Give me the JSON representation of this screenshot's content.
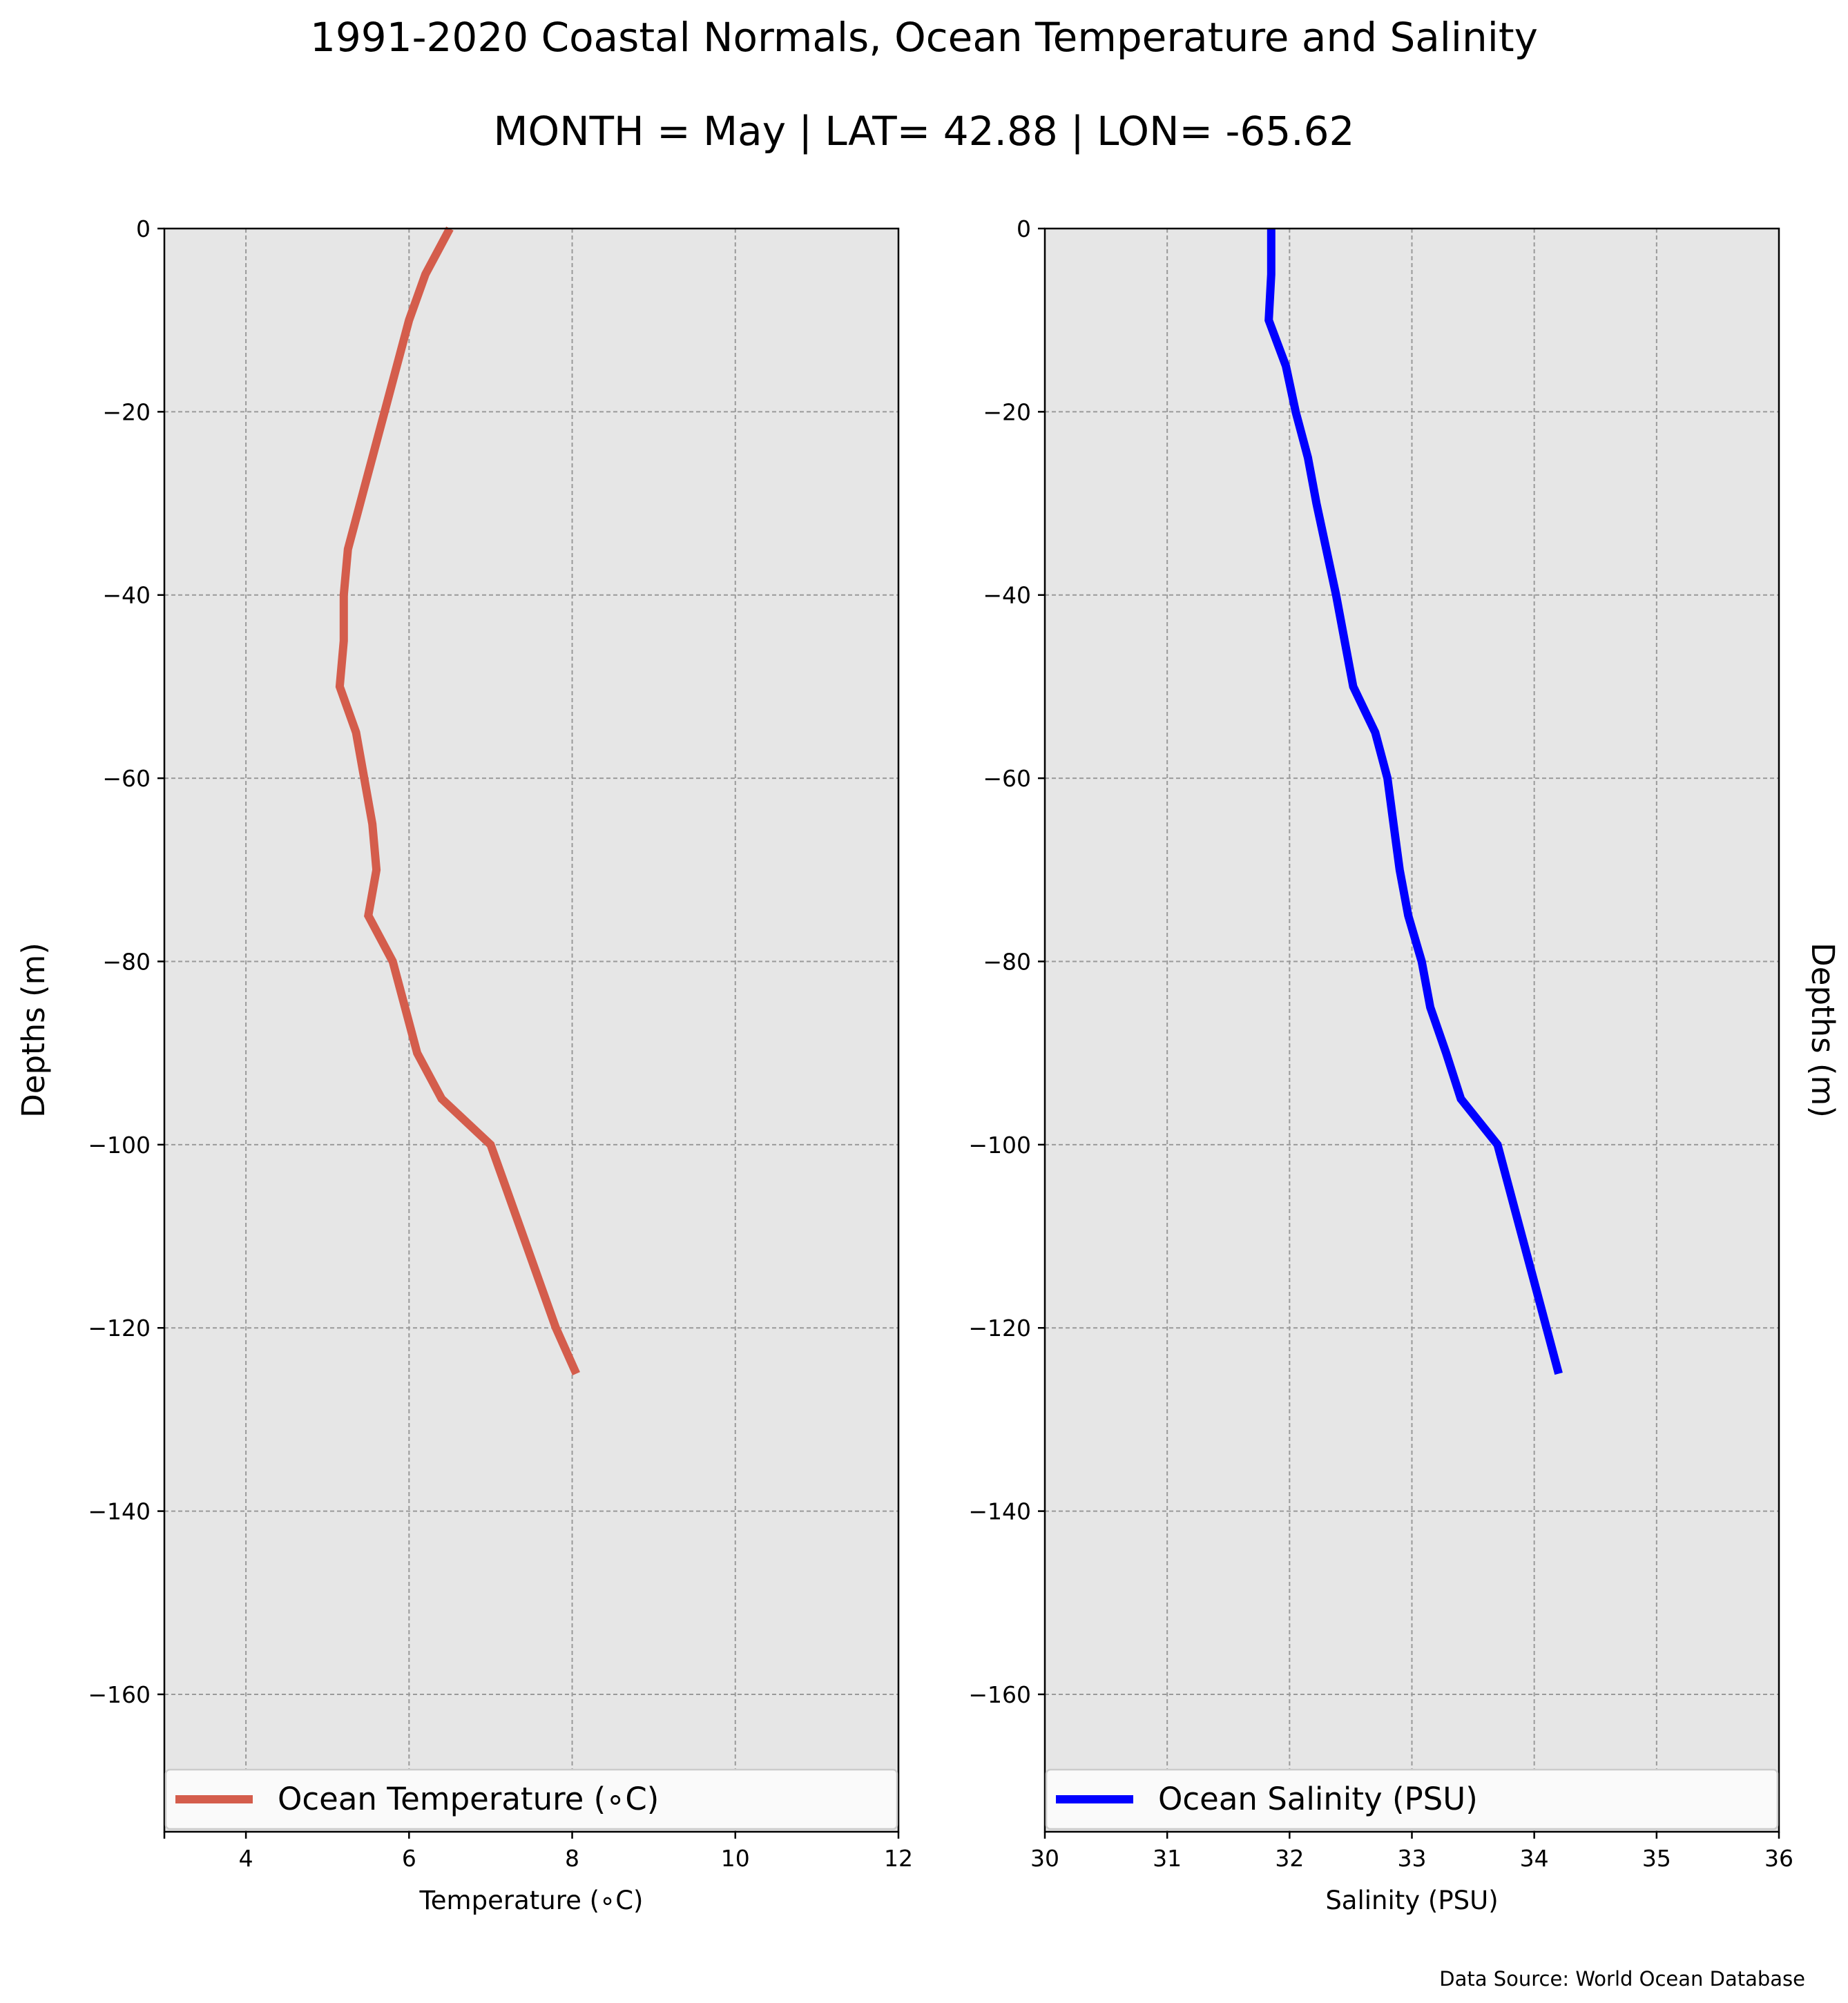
{
  "title": "1991-2020 Coastal Normals, Ocean Temperature and Salinity",
  "subtitle": "MONTH = May | LAT= 42.88 | LON= -65.62",
  "source": "Data Source: World Ocean Database",
  "chart_data": [
    {
      "type": "line",
      "xlabel": "Temperature (∘C)",
      "ylabel": "Depths (m)",
      "xlim": [
        3,
        12
      ],
      "ylim": [
        -175,
        0
      ],
      "xticks": [
        4,
        6,
        8,
        10,
        12
      ],
      "yticks": [
        0,
        -20,
        -40,
        -60,
        -80,
        -100,
        -120,
        -140,
        -160
      ],
      "grid": true,
      "legend_position": "bottom",
      "background": "#e6e6e6",
      "series": [
        {
          "name": "Ocean Temperature (∘C)",
          "color": "#d45d4c",
          "x": [
            6.5,
            6.2,
            6.0,
            5.85,
            5.7,
            5.55,
            5.4,
            5.25,
            5.2,
            5.2,
            5.15,
            5.35,
            5.45,
            5.55,
            5.6,
            5.5,
            5.8,
            5.95,
            6.1,
            6.4,
            7.0,
            7.2,
            7.4,
            7.6,
            7.8,
            8.05
          ],
          "y": [
            0,
            -5,
            -10,
            -15,
            -20,
            -25,
            -30,
            -35,
            -40,
            -45,
            -50,
            -55,
            -60,
            -65,
            -70,
            -75,
            -80,
            -85,
            -90,
            -95,
            -100,
            -105,
            -110,
            -115,
            -120,
            -125
          ]
        }
      ]
    },
    {
      "type": "line",
      "xlabel": "Salinity (PSU)",
      "ylabel": "Depths (m)",
      "xlim": [
        30,
        36
      ],
      "ylim": [
        -175,
        0
      ],
      "xticks": [
        30,
        31,
        32,
        33,
        34,
        35,
        36
      ],
      "yticks": [
        0,
        -20,
        -40,
        -60,
        -80,
        -100,
        -120,
        -140,
        -160
      ],
      "grid": true,
      "legend_position": "bottom",
      "background": "#e6e6e6",
      "series": [
        {
          "name": "Ocean Salinity (PSU)",
          "color": "#0000ff",
          "x": [
            31.85,
            31.85,
            31.83,
            31.97,
            32.05,
            32.15,
            32.22,
            32.3,
            32.38,
            32.45,
            32.52,
            32.7,
            32.8,
            32.85,
            32.9,
            32.97,
            33.08,
            33.15,
            33.28,
            33.4,
            33.7,
            33.8,
            33.9,
            34.0,
            34.1,
            34.2
          ],
          "y": [
            0,
            -5,
            -10,
            -15,
            -20,
            -25,
            -30,
            -35,
            -40,
            -45,
            -50,
            -55,
            -60,
            -65,
            -70,
            -75,
            -80,
            -85,
            -90,
            -95,
            -100,
            -105,
            -110,
            -115,
            -120,
            -125
          ]
        }
      ]
    }
  ]
}
